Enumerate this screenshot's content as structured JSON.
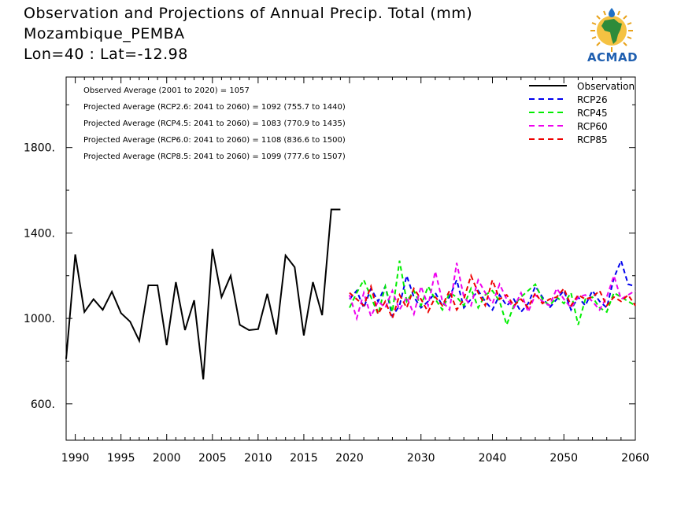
{
  "title": {
    "line1": "Observation and Projections of Annual Precip. Total (mm)",
    "line2": "Mozambique_PEMBA",
    "line3": "Lon=40 : Lat=-12.98"
  },
  "logo": {
    "text": "ACMAD",
    "icon": "acmad-africa-logo-icon"
  },
  "stats": [
    "Observed Average (2001 to 2020) = 1057",
    "Projected Average (RCP2.6: 2041 to 2060) = 1092 (755.7 to 1440)",
    "Projected Average (RCP4.5: 2041 to 2060) = 1083 (770.9 to 1435)",
    "Projected Average (RCP6.0: 2041 to 2060) = 1108 (836.6 to 1500)",
    "Projected Average (RCP8.5: 2041 to 2060) = 1099 (777.6 to 1507)"
  ],
  "colors": {
    "observation": "#000000",
    "RCP26": "#0000ee",
    "RCP45": "#00ee00",
    "RCP60": "#ee00ee",
    "RCP85": "#ee0000"
  },
  "chart_data": {
    "type": "line",
    "xlim": [
      1989,
      2060
    ],
    "ylim": [
      430,
      2130
    ],
    "x_ticks": [
      1990,
      1995,
      2000,
      2005,
      2010,
      2015,
      2020,
      2030,
      2040,
      2050,
      2060
    ],
    "y_ticks": [
      600,
      1000,
      1400,
      1800
    ],
    "y_tick_labels": [
      "600.",
      "1000.",
      "1400.",
      "1800."
    ],
    "legend_position": "top-right",
    "series": [
      {
        "name": "Observation",
        "key": "observation",
        "style": "solid",
        "x": [
          1989,
          1990,
          1991,
          1992,
          1993,
          1994,
          1995,
          1996,
          1997,
          1998,
          1999,
          2000,
          2001,
          2002,
          2003,
          2004,
          2005,
          2006,
          2007,
          2008,
          2009,
          2010,
          2011,
          2012,
          2013,
          2014,
          2015,
          2016,
          2017,
          2018,
          2019
        ],
        "y": [
          810,
          1300,
          1030,
          1090,
          1040,
          1125,
          1025,
          985,
          895,
          1155,
          1155,
          875,
          1170,
          945,
          1085,
          715,
          1325,
          1100,
          1200,
          970,
          945,
          950,
          1115,
          925,
          1295,
          1240,
          920,
          1170,
          1015,
          1510,
          1510
        ]
      },
      {
        "name": "RCP26",
        "key": "RCP26",
        "style": "dashed",
        "x": [
          2020,
          2021,
          2022,
          2023,
          2024,
          2025,
          2026,
          2027,
          2028,
          2029,
          2030,
          2031,
          2032,
          2033,
          2034,
          2035,
          2036,
          2037,
          2038,
          2039,
          2040,
          2041,
          2042,
          2043,
          2044,
          2045,
          2046,
          2047,
          2048,
          2049,
          2050,
          2051,
          2052,
          2053,
          2054,
          2055,
          2056,
          2057,
          2058,
          2059,
          2060
        ],
        "y": [
          1090,
          1130,
          1050,
          1140,
          1080,
          1150,
          1010,
          1060,
          1200,
          1100,
          1050,
          1080,
          1120,
          1060,
          1100,
          1180,
          1050,
          1090,
          1130,
          1080,
          1040,
          1110,
          1060,
          1090,
          1030,
          1070,
          1150,
          1100,
          1050,
          1090,
          1130,
          1040,
          1100,
          1060,
          1130,
          1080,
          1050,
          1190,
          1270,
          1160,
          1150
        ]
      },
      {
        "name": "RCP45",
        "key": "RCP45",
        "style": "dashed",
        "x": [
          2020,
          2021,
          2022,
          2023,
          2024,
          2025,
          2026,
          2027,
          2028,
          2029,
          2030,
          2031,
          2032,
          2033,
          2034,
          2035,
          2036,
          2037,
          2038,
          2039,
          2040,
          2041,
          2042,
          2043,
          2044,
          2045,
          2046,
          2047,
          2048,
          2049,
          2050,
          2051,
          2052,
          2053,
          2054,
          2055,
          2056,
          2057,
          2058,
          2059,
          2060
        ],
        "y": [
          1050,
          1120,
          1180,
          1100,
          1020,
          1150,
          1030,
          1270,
          1080,
          1130,
          1060,
          1150,
          1090,
          1040,
          1120,
          1100,
          1060,
          1140,
          1050,
          1110,
          1130,
          1080,
          970,
          1060,
          1100,
          1130,
          1160,
          1090,
          1060,
          1100,
          1070,
          1120,
          970,
          1090,
          1100,
          1050,
          1030,
          1120,
          1100,
          1080,
          1060
        ]
      },
      {
        "name": "RCP60",
        "key": "RCP60",
        "style": "dashed",
        "x": [
          2020,
          2021,
          2022,
          2023,
          2024,
          2025,
          2026,
          2027,
          2028,
          2029,
          2030,
          2031,
          2032,
          2033,
          2034,
          2035,
          2036,
          2037,
          2038,
          2039,
          2040,
          2041,
          2042,
          2043,
          2044,
          2045,
          2046,
          2047,
          2048,
          2049,
          2050,
          2051,
          2052,
          2053,
          2054,
          2055,
          2056,
          2057,
          2058,
          2059,
          2060
        ],
        "y": [
          1110,
          1000,
          1120,
          1010,
          1080,
          1050,
          1130,
          1040,
          1100,
          1020,
          1150,
          1060,
          1220,
          1080,
          1040,
          1260,
          1100,
          1060,
          1180,
          1120,
          1070,
          1160,
          1090,
          1050,
          1120,
          1030,
          1110,
          1080,
          1060,
          1140,
          1090,
          1050,
          1100,
          1110,
          1080,
          1040,
          1100,
          1200,
          1090,
          1110,
          1130
        ]
      },
      {
        "name": "RCP85",
        "key": "RCP85",
        "style": "dashed",
        "x": [
          2020,
          2021,
          2022,
          2023,
          2024,
          2025,
          2026,
          2027,
          2028,
          2029,
          2030,
          2031,
          2032,
          2033,
          2034,
          2035,
          2036,
          2037,
          2038,
          2039,
          2040,
          2041,
          2042,
          2043,
          2044,
          2045,
          2046,
          2047,
          2048,
          2049,
          2050,
          2051,
          2052,
          2053,
          2054,
          2055,
          2056,
          2057,
          2058,
          2059,
          2060
        ],
        "y": [
          1120,
          1090,
          1060,
          1150,
          1020,
          1080,
          1000,
          1110,
          1050,
          1140,
          1090,
          1030,
          1100,
          1060,
          1130,
          1040,
          1090,
          1200,
          1120,
          1060,
          1180,
          1090,
          1110,
          1060,
          1090,
          1050,
          1120,
          1070,
          1090,
          1100,
          1140,
          1060,
          1110,
          1090,
          1100,
          1130,
          1060,
          1100,
          1080,
          1110,
          1060
        ]
      }
    ]
  }
}
